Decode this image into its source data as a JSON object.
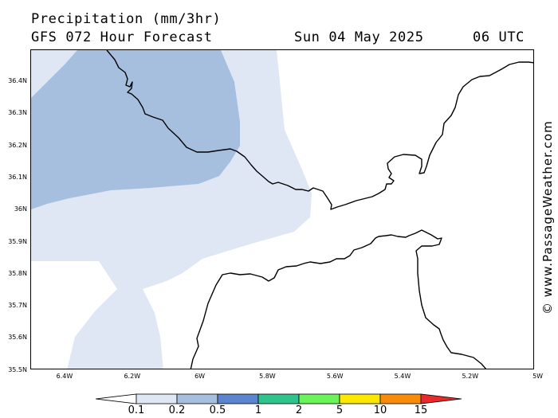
{
  "header": {
    "title": "Precipitation (mm/3hr)",
    "subtitle": "GFS 072 Hour Forecast",
    "date": "Sun 04 May 2025",
    "time": "06 UTC"
  },
  "map": {
    "lat_labels": [
      "36.4N",
      "36.3N",
      "36.2N",
      "36.1N",
      "36N",
      "35.9N",
      "35.8N",
      "35.7N",
      "35.6N",
      "35.5N"
    ],
    "lon_labels": [
      "6.4W",
      "6.2W",
      "6W",
      "5.8W",
      "5.6W",
      "5.4W",
      "5.2W",
      "5W"
    ],
    "colors": {
      "precip_0_1": "#dfe7f4",
      "precip_0_2": "#a6bfdf",
      "coastline": "#000000"
    }
  },
  "legend": {
    "labels": [
      "0.1",
      "0.2",
      "0.5",
      "1",
      "2",
      "5",
      "10",
      "15"
    ],
    "colors": [
      "#ffffff",
      "#dfe7f4",
      "#a6bfdf",
      "#5b86cf",
      "#2ec48c",
      "#6cf25a",
      "#fbe700",
      "#f88c0a",
      "#e82a2a"
    ]
  },
  "watermark": "© www.PassageWeather.com"
}
